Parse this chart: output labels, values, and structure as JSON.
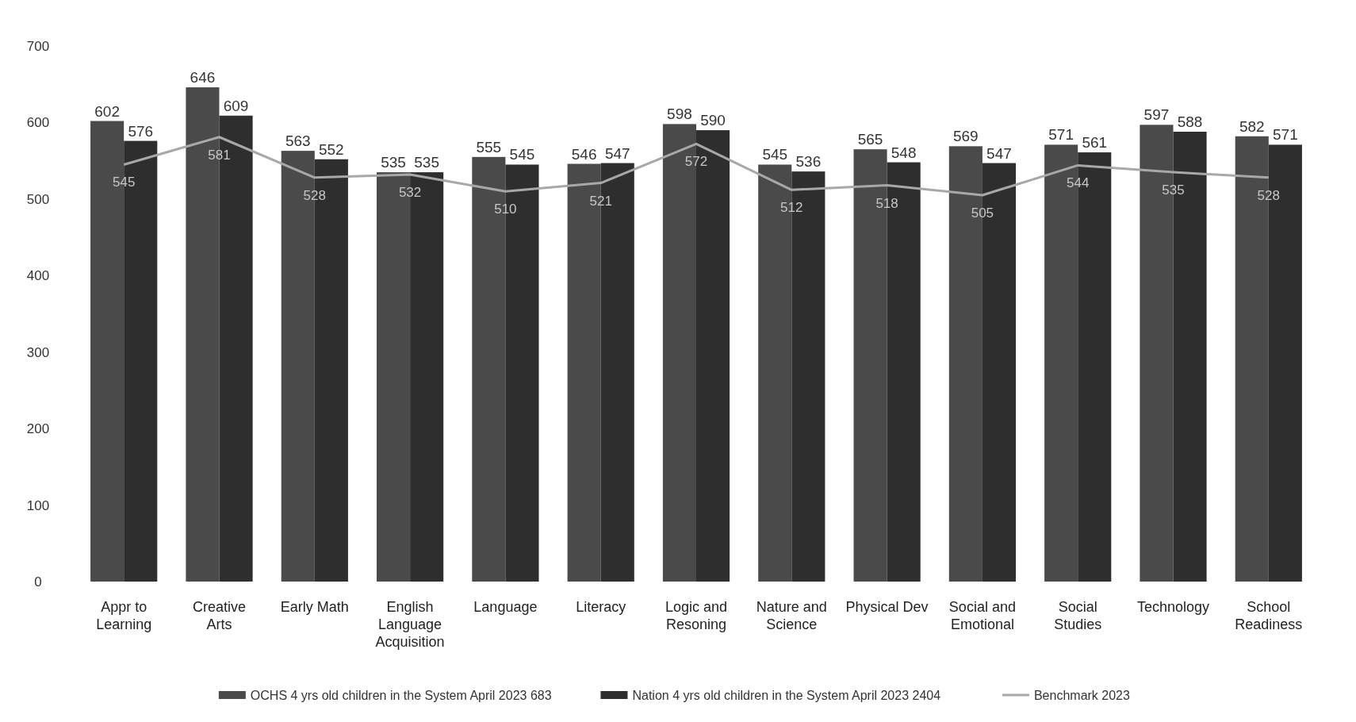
{
  "chart_data": {
    "type": "bar",
    "categories": [
      "Appr to Learning",
      "Creative Arts",
      "Early Math",
      "English Language Acquisition",
      "Language",
      "Literacy",
      "Logic and Resoning",
      "Nature and Science",
      "Physical Dev",
      "Social and Emotional",
      "Social Studies",
      "Technology",
      "School Readiness"
    ],
    "series": [
      {
        "name": "OCHS 4 yrs old children in the System April 2023 683",
        "color": "#4a4a4a",
        "values": [
          602,
          646,
          563,
          535,
          555,
          546,
          598,
          545,
          565,
          569,
          571,
          597,
          582
        ]
      },
      {
        "name": "Nation 4 yrs old children in the System April 2023 2404",
        "color": "#2e2e2e",
        "values": [
          576,
          609,
          552,
          535,
          545,
          547,
          590,
          536,
          548,
          547,
          561,
          588,
          571
        ]
      },
      {
        "name": "Benchmark 2023",
        "type": "line",
        "color": "#a8a8a8",
        "values": [
          545,
          581,
          528,
          532,
          510,
          521,
          572,
          512,
          518,
          505,
          544,
          535,
          528
        ]
      }
    ],
    "ylim": [
      0,
      700
    ],
    "yticks": [
      0,
      100,
      200,
      300,
      400,
      500,
      600,
      700
    ],
    "data_labels": true,
    "legend": "bottom",
    "grid": false
  }
}
